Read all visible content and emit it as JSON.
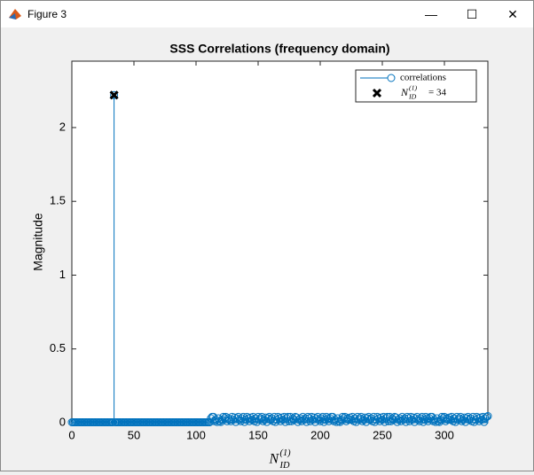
{
  "window": {
    "title": "Figure 3"
  },
  "chart_data": {
    "type": "stem",
    "title": "SSS Correlations (frequency domain)",
    "ylabel": "Magnitude",
    "xlabel": {
      "base": "N",
      "sub": "ID",
      "sup": "(1)"
    },
    "xlim": [
      0,
      335
    ],
    "xticks": [
      0,
      50,
      100,
      150,
      200,
      250,
      300
    ],
    "ylim": [
      0,
      2.45
    ],
    "yticks": [
      0,
      0.5,
      1,
      1.5,
      2
    ],
    "series": [
      {
        "name": "correlations",
        "color": "#0072bd",
        "x": [
          0,
          1,
          2,
          3,
          4,
          5,
          6,
          7,
          8,
          9,
          10,
          11,
          12,
          13,
          14,
          15,
          16,
          17,
          18,
          19,
          20,
          21,
          22,
          23,
          24,
          25,
          26,
          27,
          28,
          29,
          30,
          31,
          32,
          33,
          34,
          35,
          36,
          37,
          38,
          39,
          40,
          41,
          42,
          43,
          44,
          45,
          46,
          47,
          48,
          49,
          50,
          51,
          52,
          53,
          54,
          55,
          56,
          57,
          58,
          59,
          60,
          61,
          62,
          63,
          64,
          65,
          66,
          67,
          68,
          69,
          70,
          71,
          72,
          73,
          74,
          75,
          76,
          77,
          78,
          79,
          80,
          81,
          82,
          83,
          84,
          85,
          86,
          87,
          88,
          89,
          90,
          91,
          92,
          93,
          94,
          95,
          96,
          97,
          98,
          99,
          100,
          101,
          102,
          103,
          104,
          105,
          106,
          107,
          108,
          109,
          110,
          111,
          112,
          113,
          114,
          115,
          116,
          117,
          118,
          119,
          120,
          121,
          122,
          123,
          124,
          125,
          126,
          127,
          128,
          129,
          130,
          131,
          132,
          133,
          134,
          135,
          136,
          137,
          138,
          139,
          140,
          141,
          142,
          143,
          144,
          145,
          146,
          147,
          148,
          149,
          150,
          151,
          152,
          153,
          154,
          155,
          156,
          157,
          158,
          159,
          160,
          161,
          162,
          163,
          164,
          165,
          166,
          167,
          168,
          169,
          170,
          171,
          172,
          173,
          174,
          175,
          176,
          177,
          178,
          179,
          180,
          181,
          182,
          183,
          184,
          185,
          186,
          187,
          188,
          189,
          190,
          191,
          192,
          193,
          194,
          195,
          196,
          197,
          198,
          199,
          200,
          201,
          202,
          203,
          204,
          205,
          206,
          207,
          208,
          209,
          210,
          211,
          212,
          213,
          214,
          215,
          216,
          217,
          218,
          219,
          220,
          221,
          222,
          223,
          224,
          225,
          226,
          227,
          228,
          229,
          230,
          231,
          232,
          233,
          234,
          235,
          236,
          237,
          238,
          239,
          240,
          241,
          242,
          243,
          244,
          245,
          246,
          247,
          248,
          249,
          250,
          251,
          252,
          253,
          254,
          255,
          256,
          257,
          258,
          259,
          260,
          261,
          262,
          263,
          264,
          265,
          266,
          267,
          268,
          269,
          270,
          271,
          272,
          273,
          274,
          275,
          276,
          277,
          278,
          279,
          280,
          281,
          282,
          283,
          284,
          285,
          286,
          287,
          288,
          289,
          290,
          291,
          292,
          293,
          294,
          295,
          296,
          297,
          298,
          299,
          300,
          301,
          302,
          303,
          304,
          305,
          306,
          307,
          308,
          309,
          310,
          311,
          312,
          313,
          314,
          315,
          316,
          317,
          318,
          319,
          320,
          321,
          322,
          323,
          324,
          325,
          326,
          327,
          328,
          329,
          330,
          331,
          332,
          333,
          334,
          335
        ],
        "values": [
          0.003,
          0.003,
          0.003,
          0.003,
          0.003,
          0.003,
          0.003,
          0.003,
          0.003,
          0.003,
          0.003,
          0.003,
          0.003,
          0.003,
          0.003,
          0.003,
          0.003,
          0.003,
          0.003,
          0.003,
          0.003,
          0.003,
          0.003,
          0.003,
          0.003,
          0.003,
          0.003,
          0.003,
          0.003,
          0.003,
          0.003,
          0.003,
          0.003,
          0.003,
          2.22,
          0.003,
          0.003,
          0.003,
          0.003,
          0.003,
          0.003,
          0.003,
          0.003,
          0.003,
          0.003,
          0.003,
          0.003,
          0.003,
          0.003,
          0.003,
          0.003,
          0.003,
          0.003,
          0.003,
          0.003,
          0.003,
          0.003,
          0.003,
          0.003,
          0.003,
          0.003,
          0.003,
          0.003,
          0.003,
          0.003,
          0.003,
          0.003,
          0.003,
          0.003,
          0.003,
          0.003,
          0.003,
          0.003,
          0.003,
          0.003,
          0.003,
          0.003,
          0.003,
          0.003,
          0.003,
          0.003,
          0.003,
          0.003,
          0.003,
          0.003,
          0.003,
          0.003,
          0.003,
          0.003,
          0.003,
          0.003,
          0.003,
          0.003,
          0.003,
          0.003,
          0.003,
          0.003,
          0.003,
          0.003,
          0.003,
          0.003,
          0.003,
          0.003,
          0.003,
          0.003,
          0.003,
          0.003,
          0.003,
          0.003,
          0.003,
          0.003,
          0.003,
          0.03,
          0.04,
          0.04,
          0.01,
          0.02,
          0.005,
          0.03,
          0.01,
          0.005,
          0.02,
          0.04,
          0.03,
          0.04,
          0.01,
          0.03,
          0.02,
          0.01,
          0.04,
          0.02,
          0.035,
          0.005,
          0.03,
          0.04,
          0.02,
          0.01,
          0.03,
          0.04,
          0.005,
          0.02,
          0.04,
          0.03,
          0.01,
          0.035,
          0.02,
          0.04,
          0.01,
          0.03,
          0.005,
          0.04,
          0.02,
          0.03,
          0.04,
          0.01,
          0.02,
          0.035,
          0.005,
          0.03,
          0.04,
          0.02,
          0.03,
          0.01,
          0.04,
          0.005,
          0.02,
          0.04,
          0.03,
          0.01,
          0.035,
          0.02,
          0.04,
          0.005,
          0.03,
          0.04,
          0.01,
          0.04,
          0.01,
          0.03,
          0.02,
          0.04,
          0.035,
          0.005,
          0.02,
          0.03,
          0.01,
          0.04,
          0.02,
          0.03,
          0.005,
          0.04,
          0.03,
          0.01,
          0.04,
          0.02,
          0.035,
          0.005,
          0.03,
          0.04,
          0.02,
          0.01,
          0.03,
          0.04,
          0.005,
          0.02,
          0.04,
          0.03,
          0.01,
          0.03,
          0.04,
          0.04,
          0.01,
          0.02,
          0.005,
          0.03,
          0.01,
          0.005,
          0.02,
          0.04,
          0.03,
          0.04,
          0.01,
          0.03,
          0.02,
          0.035,
          0.02,
          0.04,
          0.01,
          0.03,
          0.005,
          0.04,
          0.02,
          0.03,
          0.04,
          0.01,
          0.02,
          0.035,
          0.005,
          0.03,
          0.04,
          0.02,
          0.03,
          0.01,
          0.04,
          0.005,
          0.02,
          0.04,
          0.03,
          0.01,
          0.035,
          0.02,
          0.04,
          0.005,
          0.03,
          0.04,
          0.01,
          0.04,
          0.01,
          0.03,
          0.02,
          0.04,
          0.035,
          0.005,
          0.02,
          0.03,
          0.01,
          0.04,
          0.02,
          0.03,
          0.005,
          0.04,
          0.03,
          0.01,
          0.04,
          0.02,
          0.035,
          0.005,
          0.03,
          0.04,
          0.02,
          0.01,
          0.03,
          0.04,
          0.005,
          0.02,
          0.04,
          0.03,
          0.01,
          0.03,
          0.04,
          0.04,
          0.01,
          0.02,
          0.005,
          0.03,
          0.01,
          0.005,
          0.02,
          0.04,
          0.03,
          0.04,
          0.01,
          0.03,
          0.02,
          0.035,
          0.02,
          0.04,
          0.01,
          0.03,
          0.005,
          0.04,
          0.02,
          0.03,
          0.04,
          0.01,
          0.02,
          0.035,
          0.005,
          0.03,
          0.04,
          0.02,
          0.03,
          0.01,
          0.04,
          0.005,
          0.02,
          0.04,
          0.03,
          0.01,
          0.035,
          0.02,
          0.04,
          0.005,
          0.03,
          0.04,
          0.045
        ]
      },
      {
        "name": {
          "base": "N",
          "sub": "ID",
          "sup": "(1)",
          "suffix": "= 34"
        },
        "color": "#000000",
        "x": [
          34
        ],
        "values": [
          2.22
        ]
      }
    ],
    "legend": "upper right",
    "grid": false
  }
}
